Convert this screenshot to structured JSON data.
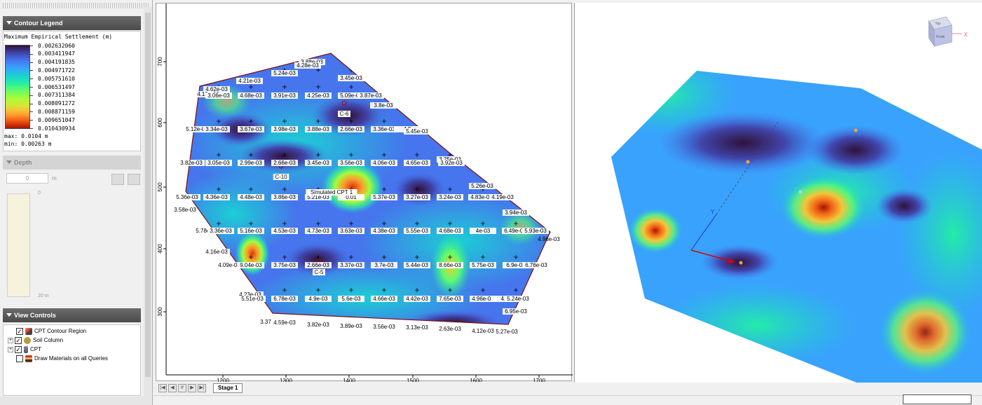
{
  "legend": {
    "header": "Contour Legend",
    "title": "Maximum Empirical Settlement (m)",
    "values": [
      "0.002632060",
      "0.003411947",
      "0.004191835",
      "0.004971722",
      "0.005751610",
      "0.006531497",
      "0.007311384",
      "0.008091272",
      "0.008871159",
      "0.009651047",
      "0.010430934"
    ],
    "max": "max: 0.0104 m",
    "min": "min: 0.00263 m"
  },
  "depth": {
    "header": "Depth",
    "value": "0",
    "unit": "m",
    "top_label": "0",
    "bottom_label": "20 m"
  },
  "view_controls": {
    "header": "View Controls",
    "items": [
      {
        "label": "CPT Contour Region",
        "checked": true,
        "expandable": false
      },
      {
        "label": "Soil Column",
        "checked": true,
        "expandable": true
      },
      {
        "label": "CPT",
        "checked": true,
        "expandable": true
      },
      {
        "label": "Draw Materials on all Queries",
        "checked": false,
        "expandable": false
      }
    ]
  },
  "plan": {
    "x_ticks": [
      "1200",
      "1300",
      "1400",
      "1500",
      "1600",
      "1700"
    ],
    "y_ticks": [
      "700",
      "600",
      "500",
      "400",
      "300"
    ],
    "cpt_labels": [
      "C-6",
      "C-10",
      "Simulated CPT 1",
      "C-5"
    ],
    "contour_labels": [
      "3.88e-03",
      "4.28e-03",
      "5.24e-03",
      "4.21e-03",
      "3.45e-03",
      "4.62e-03",
      "4.12e-03",
      "3.06e-03",
      "4.68e-03",
      "3.91e-03",
      "4.25e-03",
      "5.09e-03",
      "3.87e-03",
      "3.8e-03",
      "5.12e-03",
      "3.34e-03",
      "3.67e-03",
      "3.98e-03",
      "3.88e-03",
      "2.66e-03",
      "3.36e-03",
      "4.5",
      "5.45e-03",
      "3.82e-03",
      "3.05e-03",
      "2.99e-03",
      "2.66e-03",
      "3.45e-03",
      "3.56e-03",
      "4.06e-03",
      "4.65e-03",
      "3.25e-03",
      "3.92e-03",
      "5.36e-03",
      "4.36e-03",
      "4.48e-03",
      "3.86e-03",
      "5.21e-03",
      "0.01",
      "5.37e-03",
      "3.27e-03",
      "3.24e-03",
      "5.26e-03",
      "4.83e-03",
      "4.19e-03",
      "3.58e-03",
      "3.94e-03",
      "5.78e-03",
      "3.36e-03",
      "5.16e-03",
      "4.53e-03",
      "4.73e-03",
      "3.63e-03",
      "4.38e-03",
      "5.55e-03",
      "4.68e-03",
      "4e-03",
      "6.49e-03",
      "5.93e-03",
      "4.96e-03",
      "4.16e-03",
      "4.09e-03",
      "9.04e-03",
      "3.75e-03",
      "2.66e-03",
      "3.37e-03",
      "3.7e-03",
      "5.44e-03",
      "8.66e-03",
      "5.75e-03",
      "6.9e-03",
      "6.76e-03",
      "4.23e-03",
      "5.51e-03",
      "6.78e-03",
      "4.9e-03",
      "5.6e-03",
      "4.66e-03",
      "4.42e-03",
      "7.65e-03",
      "4.96e-03",
      "4.5",
      "5.24e-03",
      "6.95e-03",
      "3.37",
      "4.59e-03",
      "3.82e-03",
      "3.89e-03",
      "3.56e-03",
      "3.13e-03",
      "2.63e-03",
      "4.12e-03",
      "5.27e-03"
    ]
  },
  "tabs": {
    "stage": "Stage 1"
  },
  "view3d": {
    "axis_x": "X",
    "axis_y": "Y",
    "cube_top": "Top",
    "cube_front": "Front"
  },
  "colors": {
    "low": "#30123b",
    "mid": "#24eca6",
    "high": "#a11601",
    "boundary": "#7a1010",
    "header_dark": "#555555"
  }
}
